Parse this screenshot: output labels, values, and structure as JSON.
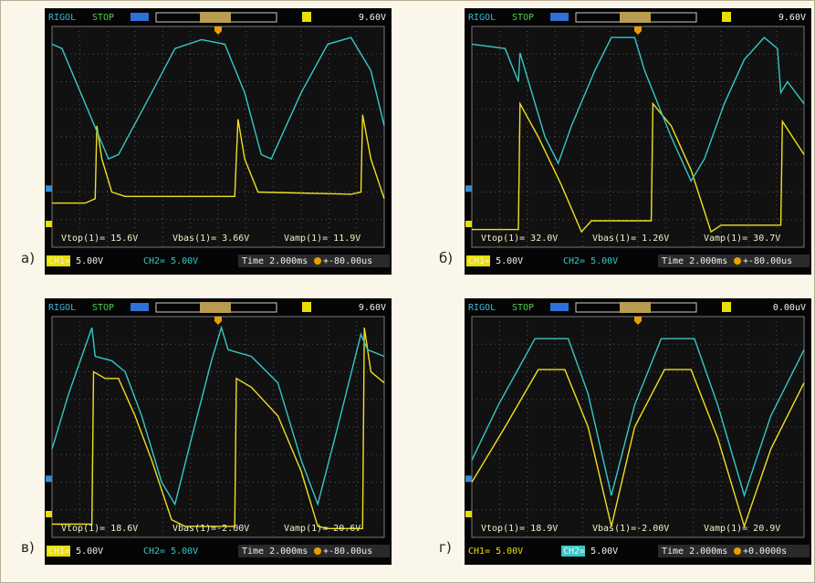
{
  "panels": [
    {
      "label": "а)",
      "header": {
        "brand": "RIGOL",
        "status": "STOP",
        "trigger_level": "9.60V"
      },
      "measurements": {
        "vtop": "Vtop(1)= 15.6V",
        "vbas": "Vbas(1)= 3.66V",
        "vamp": "Vamp(1)= 11.9V"
      },
      "footer": {
        "ch1": "CH1= 5.00V",
        "ch2": "CH2= 5.00V",
        "time": "Time 2.000ms",
        "offset": "+-80.00us"
      }
    },
    {
      "label": "б)",
      "header": {
        "brand": "RIGOL",
        "status": "STOP",
        "trigger_level": "9.60V"
      },
      "measurements": {
        "vtop": "Vtop(1)= 32.0V",
        "vbas": "Vbas(1)= 1.26V",
        "vamp": "Vamp(1)= 30.7V"
      },
      "footer": {
        "ch1": "CH1= 5.00V",
        "ch2": "CH2= 5.00V",
        "time": "Time 2.000ms",
        "offset": "+-80.00us"
      }
    },
    {
      "label": "в)",
      "header": {
        "brand": "RIGOL",
        "status": "STOP",
        "trigger_level": "9.60V"
      },
      "measurements": {
        "vtop": "Vtop(1)= 18.6V",
        "vbas": "Vbas(1)=-2.00V",
        "vamp": "Vamp(1)= 20.6V"
      },
      "footer": {
        "ch1": "CH1= 5.00V",
        "ch2": "CH2= 5.00V",
        "time": "Time 2.000ms",
        "offset": "+-80.00us"
      }
    },
    {
      "label": "г)",
      "header": {
        "brand": "RIGOL",
        "status": "STOP",
        "trigger_level": "0.00uV"
      },
      "measurements": {
        "vtop": "Vtop(1)= 18.9V",
        "vbas": "Vbas(1)=-2.00V",
        "vamp": "Vamp(1)= 20.9V"
      },
      "footer": {
        "ch1": "CH1= 5.00V",
        "ch2": "CH2= 5.00V",
        "time": "Time 2.000ms",
        "offset": "+0.0000s"
      }
    }
  ]
}
